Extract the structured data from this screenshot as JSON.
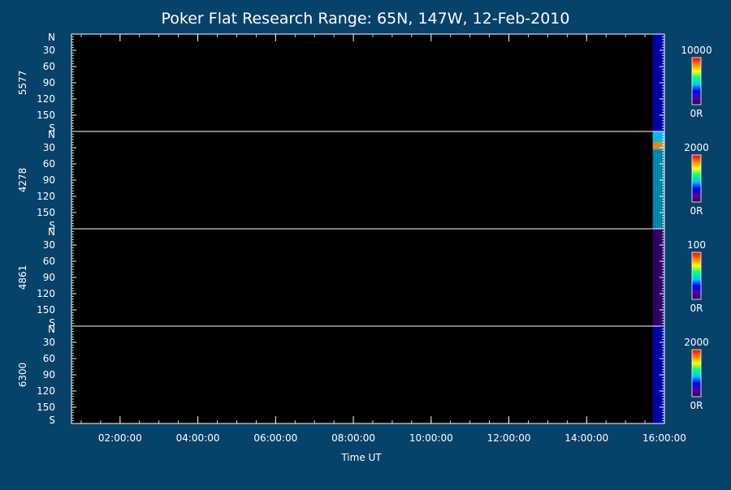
{
  "chart_data": {
    "type": "heatmap",
    "title": "Poker Flat Research Range: 65N, 147W, 12-Feb-2010",
    "xlabel": "Time UT",
    "x_ticks": [
      "02:00:00",
      "04:00:00",
      "06:00:00",
      "08:00:00",
      "10:00:00",
      "12:00:00",
      "14:00:00",
      "16:00:00"
    ],
    "y_ticks": [
      "N",
      "30",
      "60",
      "90",
      "120",
      "150",
      "S"
    ],
    "panels": [
      {
        "wavelength": "5577",
        "colorbar": {
          "max_label": "10000",
          "min_label": "0R"
        },
        "data_start": "15:42:00",
        "intensity_level": 0.35,
        "bright_band": null
      },
      {
        "wavelength": "4278",
        "colorbar": {
          "max_label": "2000",
          "min_label": "0R"
        },
        "data_start": "15:42:00",
        "intensity_level": 0.4,
        "bright_band": {
          "from": "N",
          "center_deg": 25,
          "level": 0.8
        }
      },
      {
        "wavelength": "4861",
        "colorbar": {
          "max_label": "100",
          "min_label": "0R"
        },
        "data_start": "15:42:00",
        "intensity_level": 0.15,
        "bright_band": null
      },
      {
        "wavelength": "6300",
        "colorbar": {
          "max_label": "2000",
          "min_label": "0R"
        },
        "data_start": "15:42:00",
        "intensity_level": 0.3,
        "bright_band": null
      }
    ],
    "x_range": [
      "00:45:00",
      "16:00:00"
    ],
    "y_range_deg": [
      0,
      180
    ],
    "colors": {
      "background": "#07426a",
      "plot_bg": "#000000",
      "foreground": "#ffffff",
      "colormap": [
        "#3a0050",
        "#4b00a0",
        "#0000ff",
        "#00c8ff",
        "#00ff80",
        "#ffff00",
        "#ff8000",
        "#ff0000"
      ]
    }
  }
}
